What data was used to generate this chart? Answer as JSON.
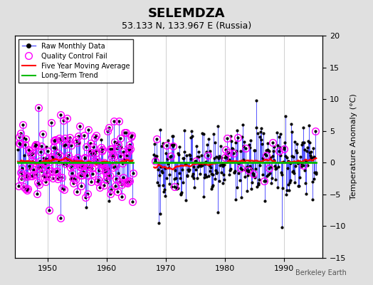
{
  "title": "SELEMDZA",
  "subtitle": "53.133 N, 133.967 E (Russia)",
  "watermark": "Berkeley Earth",
  "ylabel_right": "Temperature Anomaly (°C)",
  "xlim": [
    1944.5,
    1996.5
  ],
  "ylim": [
    -15,
    20
  ],
  "yticks": [
    -15,
    -10,
    -5,
    0,
    5,
    10,
    15,
    20
  ],
  "xticks": [
    1950,
    1960,
    1970,
    1980,
    1990
  ],
  "bg_color": "#e0e0e0",
  "plot_bg_color": "#ffffff",
  "grid_color": "#c8c8c8",
  "raw_line_color": "#5555ff",
  "raw_marker_color": "#000000",
  "qc_fail_color": "#ff00ff",
  "moving_avg_color": "#ff0000",
  "trend_color": "#00bb00",
  "title_fontsize": 13,
  "subtitle_fontsize": 9,
  "seed": 17,
  "phase1_start": 1945,
  "phase1_end": 1964.5,
  "phase2_start": 1968,
  "phase2_end": 1995.5
}
